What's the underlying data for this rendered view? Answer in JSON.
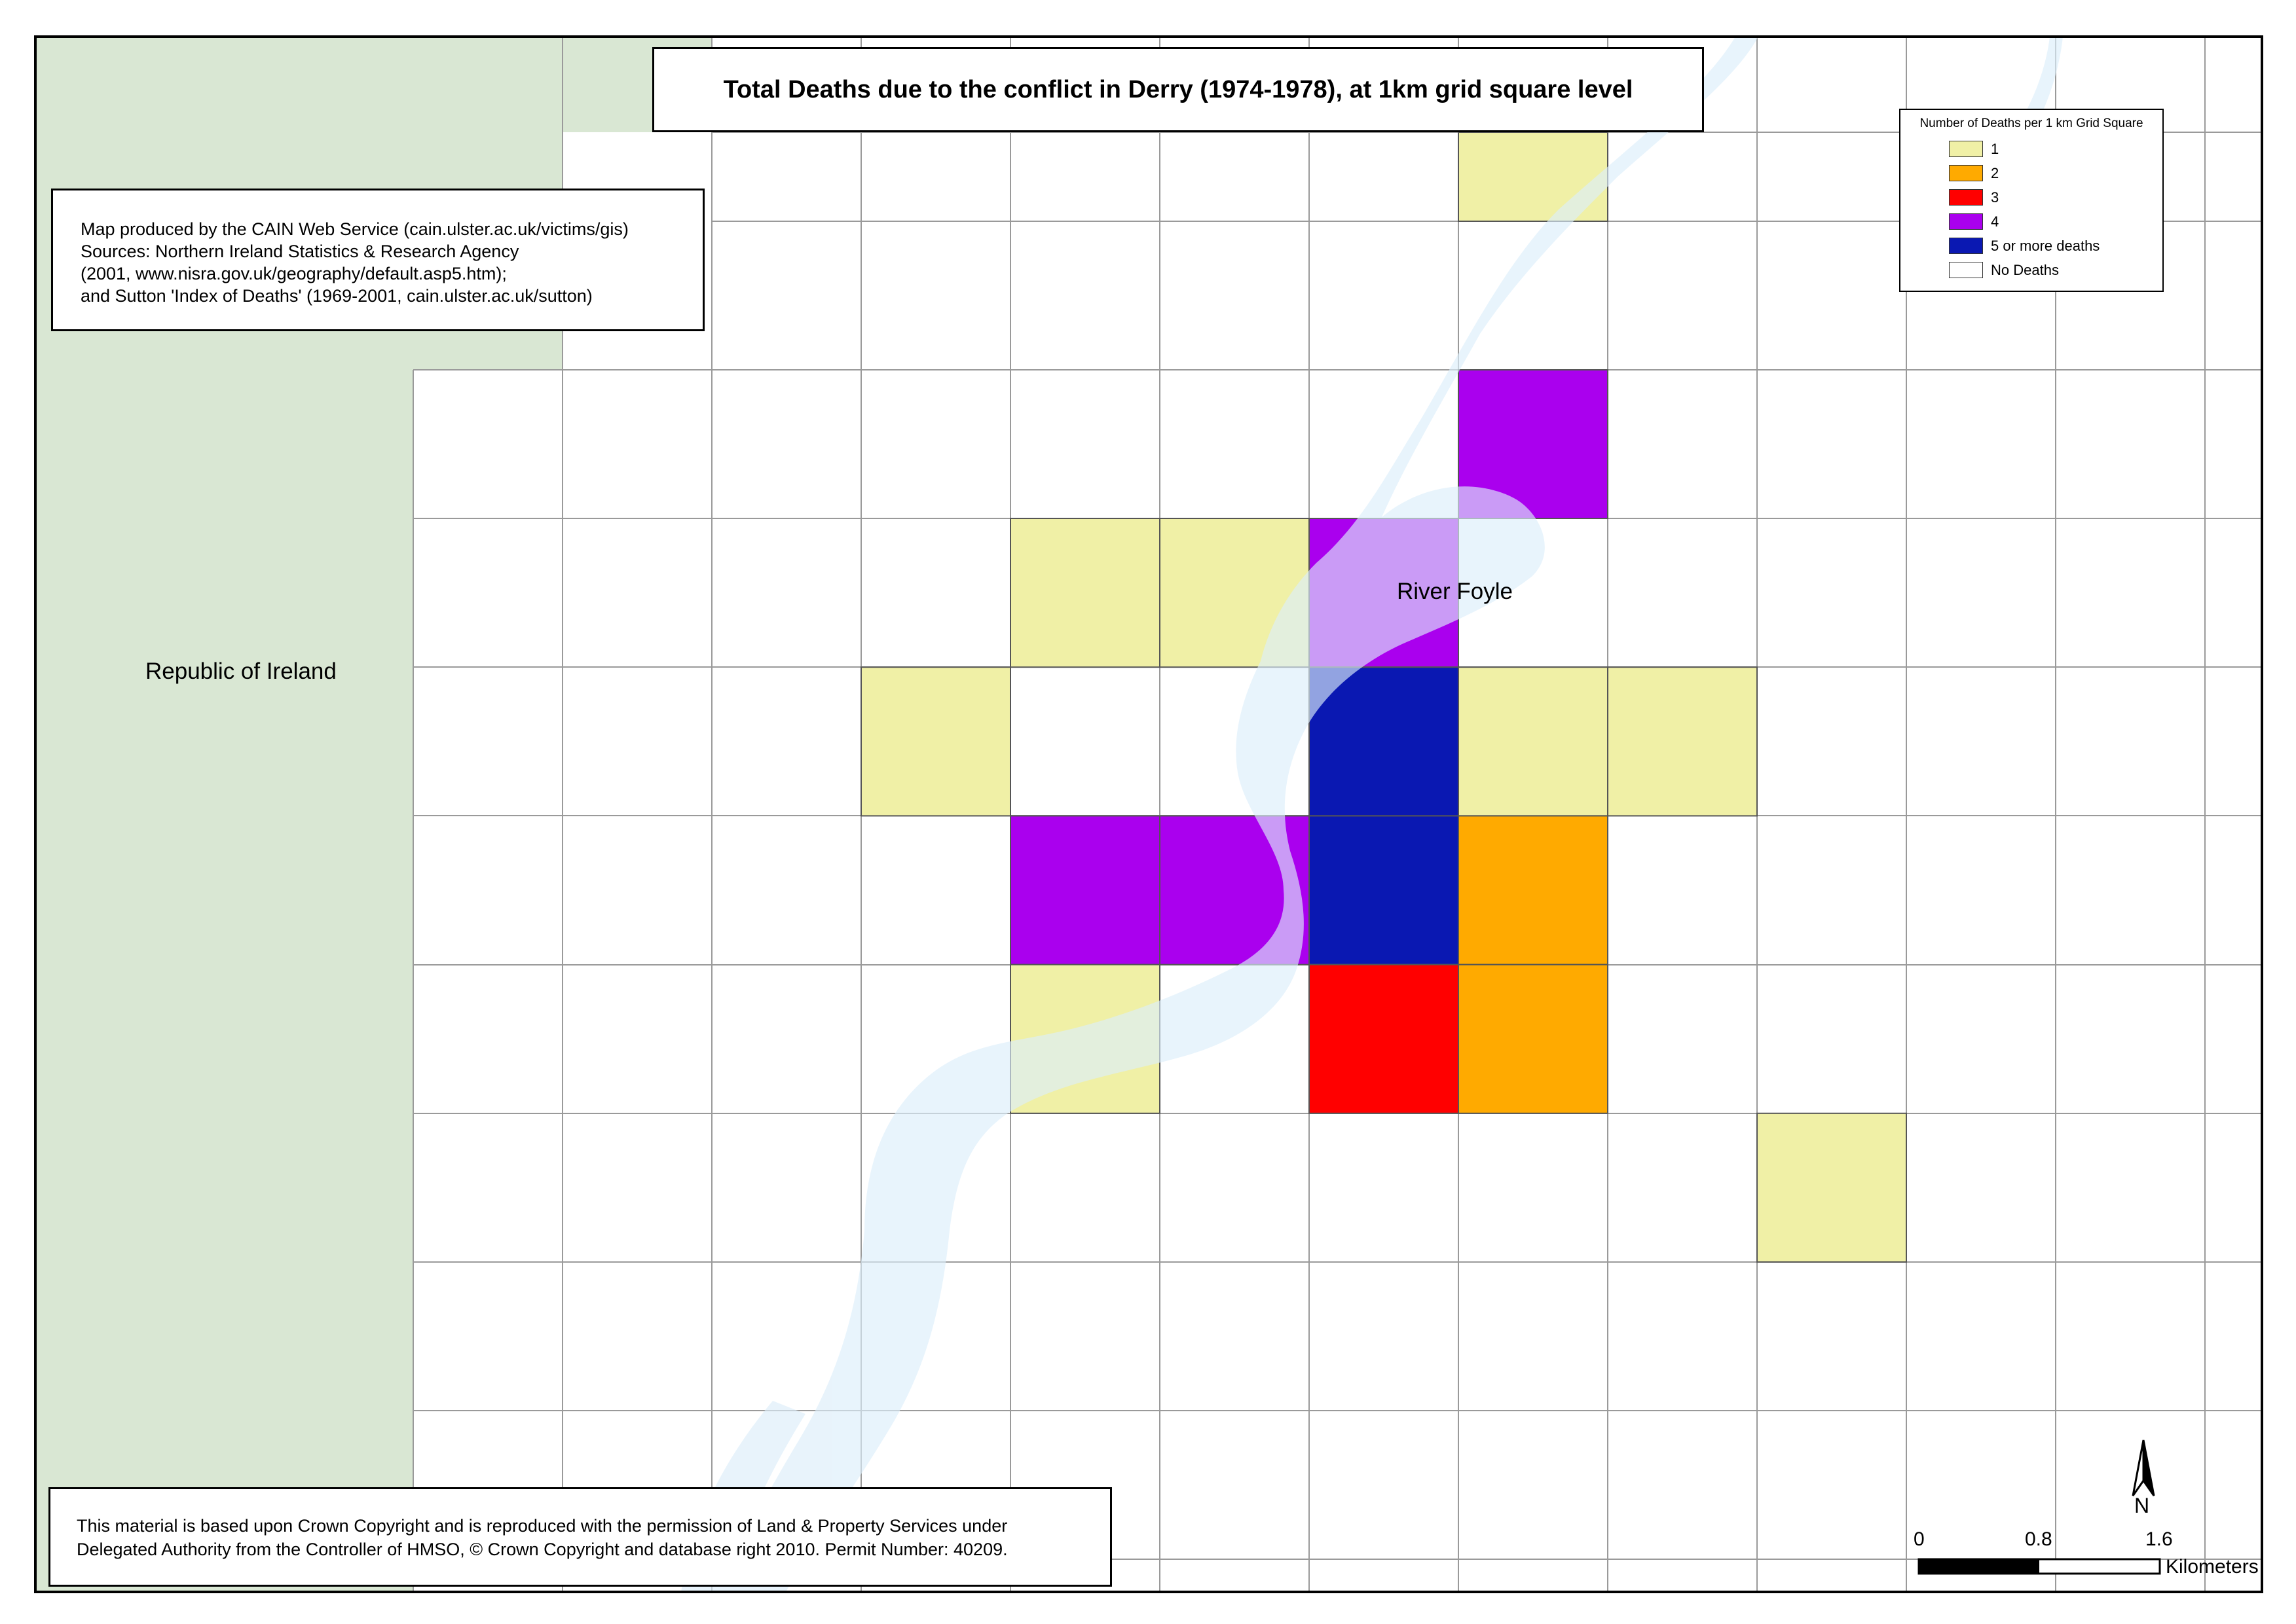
{
  "title": "Total Deaths due to the conflict in Derry (1974-1978), at 1km grid square level",
  "source_lines": [
    "Map produced by the CAIN Web Service (cain.ulster.ac.uk/victims/gis)",
    "Sources: Northern Ireland Statistics & Research Agency",
    "(2001, www.nisra.gov.uk/geography/default.asp5.htm);",
    "and Sutton 'Index of Deaths' (1969-2001, cain.ulster.ac.uk/sutton)"
  ],
  "copyright_lines": [
    "This material is based upon Crown Copyright and is reproduced with the permission of Land & Property Services under",
    "Delegated Authority from the Controller of HMSO, © Crown Copyright and database right 2010. Permit Number: 40209."
  ],
  "legend": {
    "title": "Number of Deaths per 1 km Grid Square",
    "items": [
      {
        "label": "1",
        "color": "#f0f0a6"
      },
      {
        "label": "2",
        "color": "#ffaa00"
      },
      {
        "label": "3",
        "color": "#ff0000"
      },
      {
        "label": "4",
        "color": "#aa00ee"
      },
      {
        "label": "5 or more deaths",
        "color": "#0a18b2"
      },
      {
        "label": "No Deaths",
        "color": "#ffffff"
      }
    ]
  },
  "labels": {
    "republic": "Republic of Ireland",
    "river": "River Foyle"
  },
  "north_arrow": {
    "letter": "N"
  },
  "scale_bar": {
    "ticks": [
      "0",
      "0.8",
      "1.6"
    ],
    "unit": "Kilometers"
  },
  "colors": {
    "republic_land": "#d9e7d3",
    "water": "#dceefa",
    "grid_line": "#9a9a9a"
  },
  "grid": {
    "columns": 12,
    "rows": 10,
    "deaths": [
      {
        "col": 6,
        "row": 0,
        "value": 1
      },
      {
        "col": 6,
        "row": 2,
        "value": 4
      },
      {
        "col": 3,
        "row": 3,
        "value": 1
      },
      {
        "col": 4,
        "row": 3,
        "value": 1
      },
      {
        "col": 5,
        "row": 3,
        "value": 4
      },
      {
        "col": 2,
        "row": 4,
        "value": 1
      },
      {
        "col": 5,
        "row": 4,
        "value": 5
      },
      {
        "col": 6,
        "row": 4,
        "value": 1
      },
      {
        "col": 7,
        "row": 4,
        "value": 1
      },
      {
        "col": 3,
        "row": 5,
        "value": 4
      },
      {
        "col": 4,
        "row": 5,
        "value": 4
      },
      {
        "col": 5,
        "row": 5,
        "value": 5
      },
      {
        "col": 6,
        "row": 5,
        "value": 2
      },
      {
        "col": 3,
        "row": 6,
        "value": 1
      },
      {
        "col": 5,
        "row": 6,
        "value": 3
      },
      {
        "col": 6,
        "row": 6,
        "value": 2
      },
      {
        "col": 8,
        "row": 7,
        "value": 1
      }
    ]
  }
}
